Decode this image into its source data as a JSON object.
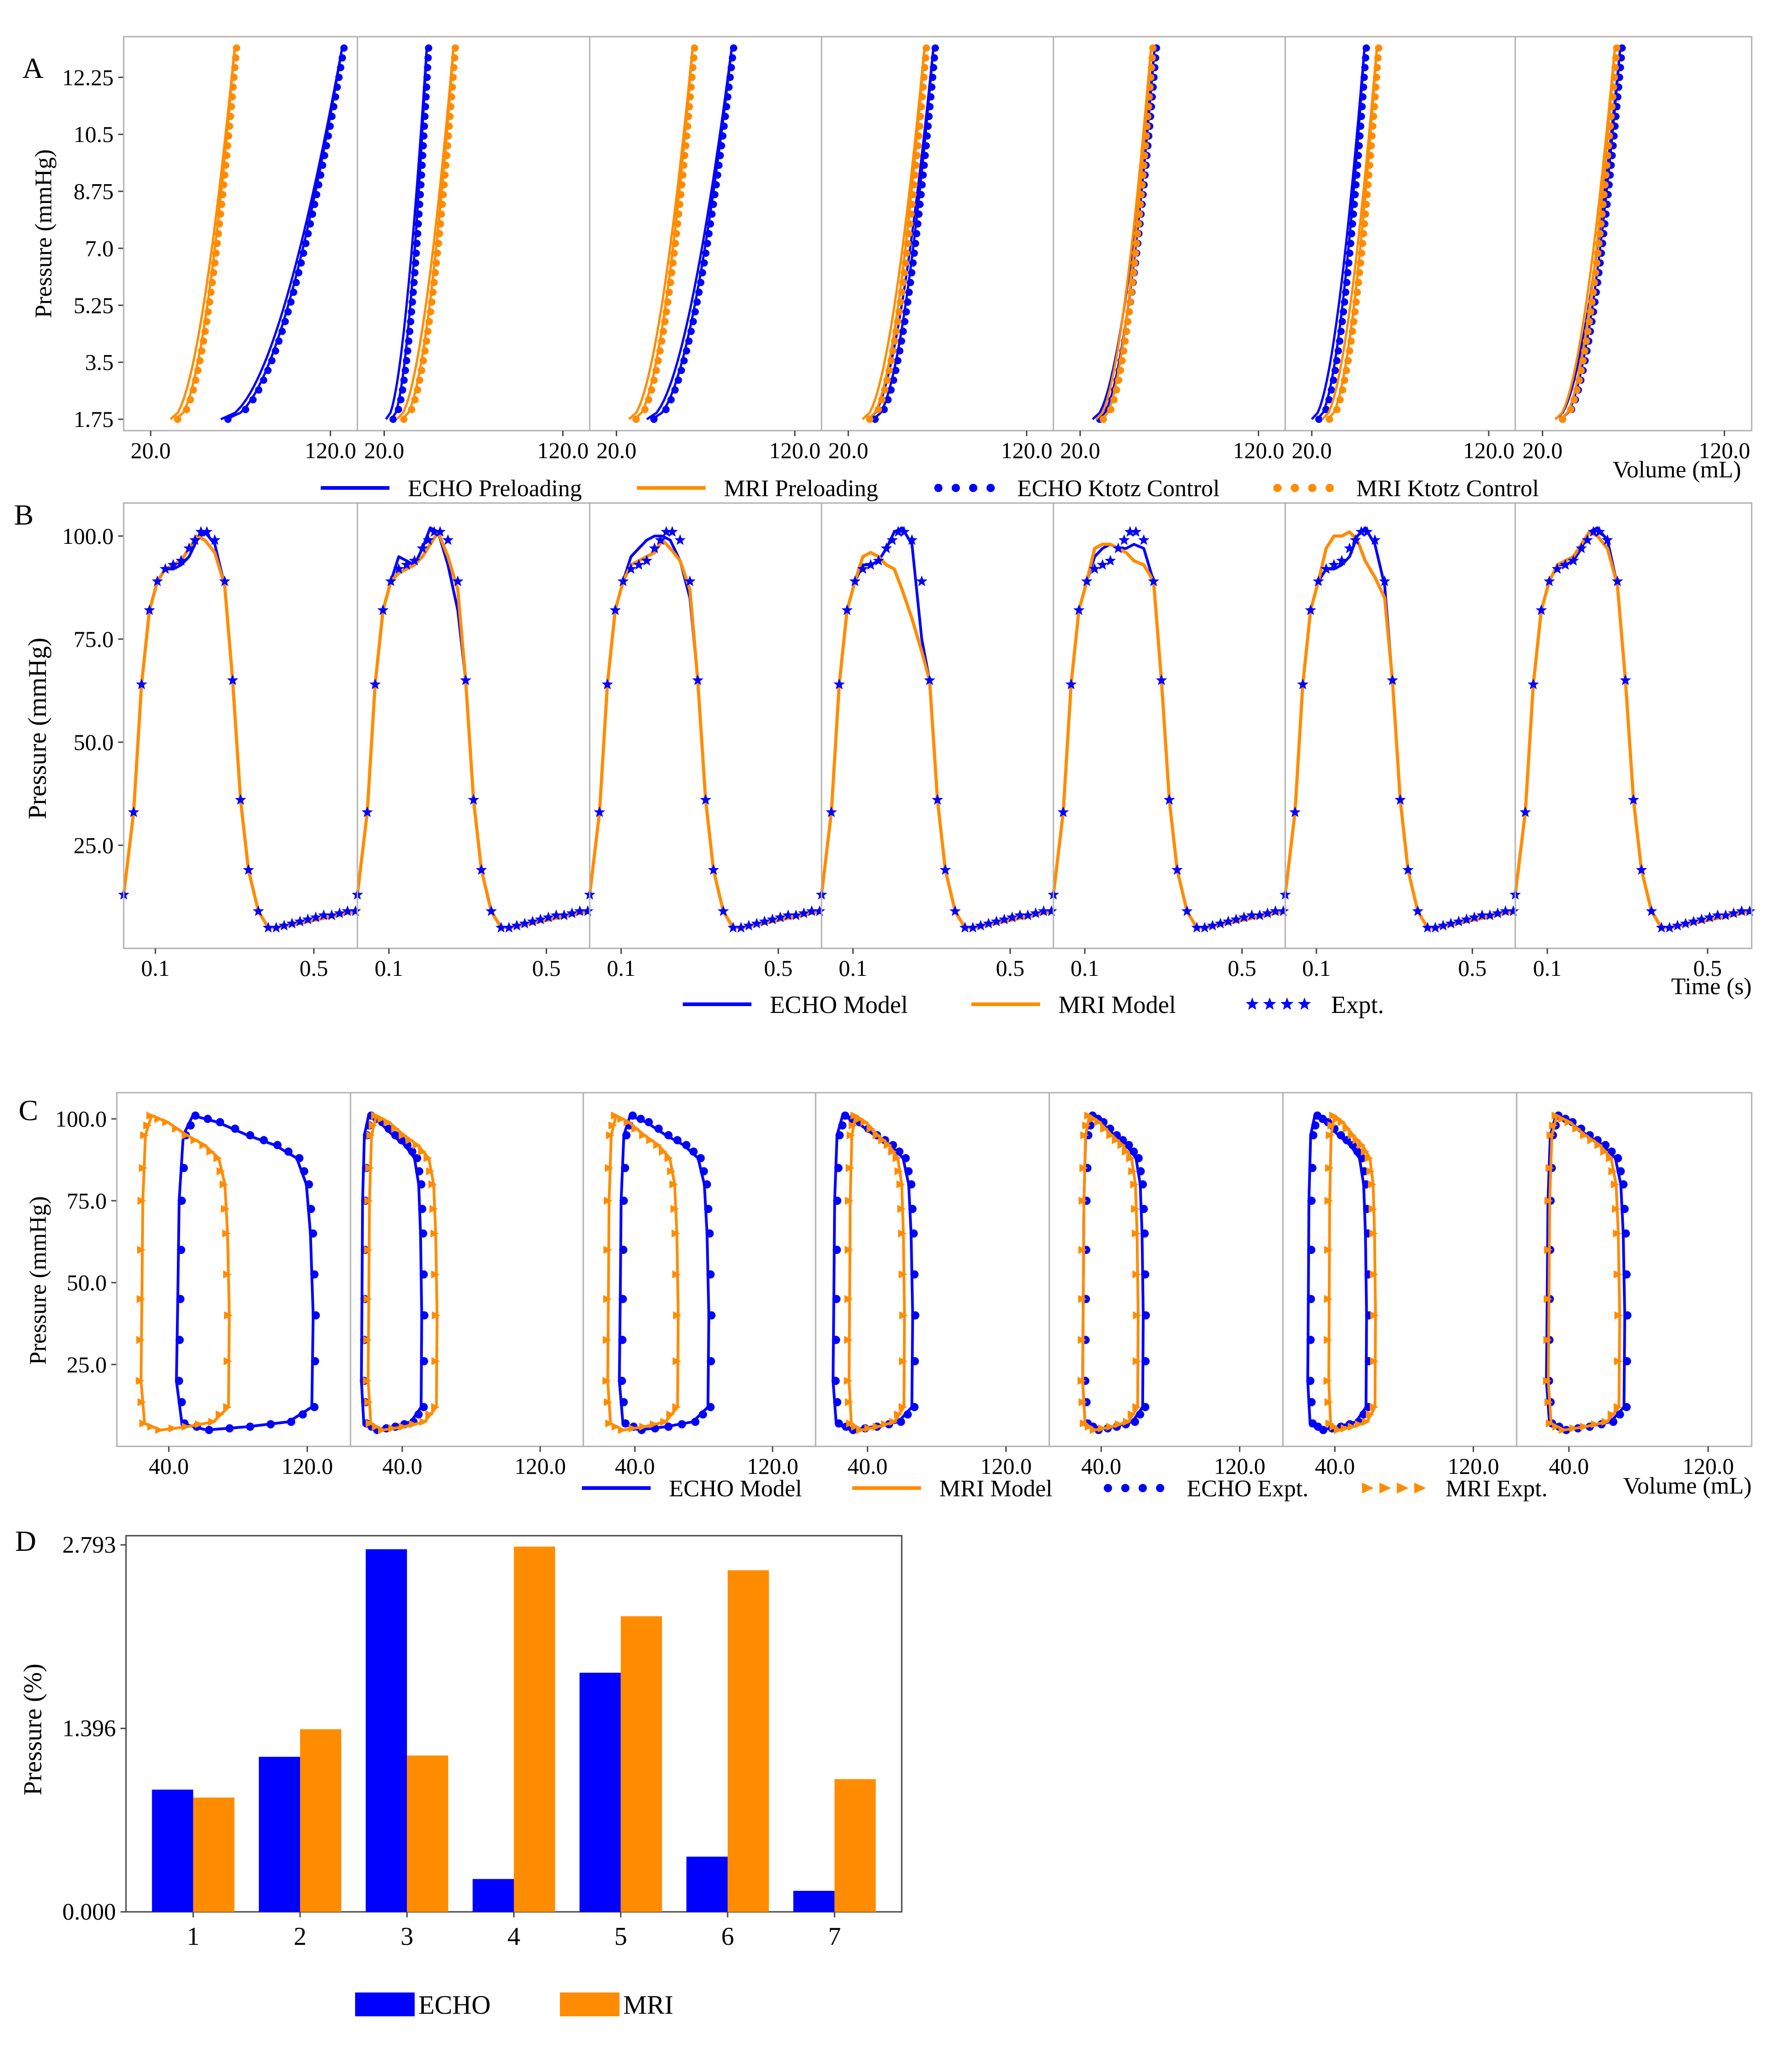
{
  "colors": {
    "echo": "#0000ff",
    "mri": "#ff8c00",
    "axis": "#444444",
    "frame": "#b0b0b0"
  },
  "panel_letters": [
    "A",
    "B",
    "C",
    "D"
  ],
  "chart_data": [
    {
      "panel": "A",
      "type": "line",
      "ylabel": "Pressure (mmHg)",
      "xlabel": "Volume (mL)",
      "ylim": [
        1.4,
        13.5
      ],
      "yticks": [
        1.75,
        3.5,
        5.25,
        7.0,
        8.75,
        10.5,
        12.25
      ],
      "ytick_labels": [
        "1.75",
        "3.5",
        "5.25",
        "7.0",
        "8.75",
        "10.5",
        "12.25"
      ],
      "xlim": [
        5,
        135
      ],
      "xticks": [
        20,
        120
      ],
      "xtick_labels": [
        "20.0",
        "120.0"
      ],
      "legend": [
        "ECHO Preloading",
        "MRI Preloading",
        "ECHO Ktotz Control",
        "MRI Ktotz Control"
      ],
      "pressure_points": [
        1.75,
        2.5,
        3.5,
        4.5,
        5.5,
        6.5,
        7.5,
        8.5,
        9.5,
        10.5,
        11.5,
        12.5,
        13.3
      ],
      "subplots": [
        {
          "echo_v0": 62,
          "echo_v1": 105,
          "echo_vmax": 127,
          "mri_v0": 34,
          "mri_v1": 56,
          "mri_vmax": 67
        },
        {
          "echo_v0": 24,
          "echo_v1": 38,
          "echo_vmax": 44,
          "mri_v0": 30,
          "mri_v1": 50,
          "mri_vmax": 59
        },
        {
          "echo_v0": 40,
          "echo_v1": 71,
          "echo_vmax": 85,
          "mri_v0": 30,
          "mri_v1": 52,
          "mri_vmax": 63
        },
        {
          "echo_v0": 34,
          "echo_v1": 57,
          "echo_vmax": 68,
          "mri_v0": 31,
          "mri_v1": 53,
          "mri_vmax": 63
        },
        {
          "echo_v0": 30,
          "echo_v1": 51,
          "echo_vmax": 62,
          "mri_v0": 32,
          "mri_v1": 51,
          "mri_vmax": 60
        },
        {
          "echo_v0": 23,
          "echo_v1": 41,
          "echo_vmax": 50,
          "mri_v0": 29,
          "mri_v1": 49,
          "mri_vmax": 57
        },
        {
          "echo_v0": 30,
          "echo_v1": 52,
          "echo_vmax": 63,
          "mri_v0": 30,
          "mri_v1": 50,
          "mri_vmax": 60
        }
      ]
    },
    {
      "panel": "B",
      "type": "line",
      "ylabel": "Pressure (mmHg)",
      "xlabel": "Time (s)",
      "xlim": [
        0.02,
        0.61
      ],
      "ylim": [
        0,
        108
      ],
      "yticks": [
        25,
        50,
        75,
        100
      ],
      "ytick_labels": [
        "25.0",
        "50.0",
        "75.0",
        "100.0"
      ],
      "xticks": [
        0.1,
        0.5
      ],
      "xtick_labels": [
        "0.1",
        "0.5"
      ],
      "legend": [
        "ECHO Model",
        "MRI Model",
        "Expt."
      ],
      "expt_t": [
        0.02,
        0.045,
        0.065,
        0.085,
        0.105,
        0.125,
        0.145,
        0.165,
        0.185,
        0.2,
        0.215,
        0.23,
        0.25,
        0.275,
        0.295,
        0.315,
        0.335,
        0.36,
        0.385,
        0.405,
        0.425,
        0.445,
        0.465,
        0.485,
        0.505,
        0.525,
        0.545,
        0.565,
        0.585,
        0.605
      ],
      "expt_p": [
        13,
        33,
        64,
        82,
        89,
        92,
        93,
        94,
        97,
        99,
        101,
        101,
        99,
        89,
        65,
        36,
        19,
        9,
        5,
        5,
        5.5,
        6,
        6.5,
        7,
        7.5,
        8,
        8,
        8.5,
        9,
        9
      ],
      "subplots": [
        {
          "echo_plateau": [
            92,
            92,
            93,
            95,
            99,
            101,
            98,
            88
          ],
          "mri_plateau": [
            92,
            93,
            94,
            97,
            100,
            99,
            96,
            88
          ]
        },
        {
          "echo_plateau": [
            95,
            94,
            93,
            97,
            102,
            101,
            93,
            82
          ],
          "mri_plateau": [
            91,
            92,
            93,
            95,
            98,
            101,
            95,
            87
          ]
        },
        {
          "echo_plateau": [
            95,
            97,
            99,
            100,
            100,
            99,
            94,
            85
          ],
          "mri_plateau": [
            93,
            94,
            95,
            96,
            99,
            97,
            94,
            87
          ]
        },
        {
          "echo_plateau": [
            93,
            93,
            94,
            97,
            101,
            102,
            98,
            75
          ],
          "mri_plateau": [
            95,
            96,
            95,
            93,
            92,
            87,
            80,
            72
          ]
        },
        {
          "echo_plateau": [
            95,
            97,
            98,
            97,
            97,
            98,
            97,
            89
          ],
          "mri_plateau": [
            97,
            98,
            98,
            97,
            96,
            94,
            93,
            89
          ]
        },
        {
          "echo_plateau": [
            92,
            92,
            93,
            95,
            100,
            102,
            98,
            88
          ],
          "mri_plateau": [
            97,
            100,
            100,
            101,
            99,
            94,
            90,
            85
          ]
        },
        {
          "echo_plateau": [
            93,
            93,
            94,
            97,
            101,
            102,
            99,
            88
          ],
          "mri_plateau": [
            93,
            94,
            95,
            98,
            101,
            100,
            97,
            88
          ]
        }
      ]
    },
    {
      "panel": "C",
      "type": "line",
      "ylabel": "Pressure (mmHg)",
      "xlabel": "Volume (mL)",
      "xlim": [
        10,
        145
      ],
      "ylim": [
        0,
        108
      ],
      "yticks": [
        25,
        50,
        75,
        100
      ],
      "ytick_labels": [
        "25.0",
        "50.0",
        "75.0",
        "100.0"
      ],
      "xticks": [
        40,
        120
      ],
      "xtick_labels": [
        "40.0",
        "120.0"
      ],
      "legend": [
        "ECHO Model",
        "MRI Model",
        "ECHO Expt.",
        "MRI Expt."
      ],
      "subplots": [
        {
          "echo_esv": 46,
          "echo_edv": 125,
          "mri_esv": 25,
          "mri_edv": 76
        },
        {
          "echo_esv": 17,
          "echo_edv": 52,
          "mri_esv": 21,
          "mri_edv": 61
        },
        {
          "echo_esv": 32,
          "echo_edv": 84,
          "mri_esv": 25,
          "mri_edv": 66
        },
        {
          "echo_esv": 21,
          "echo_edv": 67,
          "mri_esv": 30,
          "mri_edv": 62
        },
        {
          "echo_esv": 30,
          "echo_edv": 65,
          "mri_esv": 30,
          "mri_edv": 62
        },
        {
          "echo_esv": 25,
          "echo_edv": 59,
          "mri_esv": 37,
          "mri_edv": 64
        },
        {
          "echo_esv": 28,
          "echo_edv": 73,
          "mri_esv": 29,
          "mri_edv": 70
        }
      ]
    },
    {
      "panel": "D",
      "type": "bar",
      "ylabel": "Pressure (%)",
      "categories": [
        "1",
        "2",
        "3",
        "4",
        "5",
        "6",
        "7"
      ],
      "ylim": [
        0,
        2.793
      ],
      "yticks": [
        0,
        1.396,
        2.793
      ],
      "ytick_labels": [
        "0.000",
        "1.396",
        "2.793"
      ],
      "series": [
        {
          "name": "ECHO",
          "values": [
            0.93,
            1.18,
            2.76,
            0.25,
            1.82,
            0.42,
            0.16
          ]
        },
        {
          "name": "MRI",
          "values": [
            0.87,
            1.39,
            1.19,
            2.78,
            2.25,
            2.6,
            1.01
          ]
        }
      ],
      "legend": [
        "ECHO",
        "MRI"
      ]
    }
  ]
}
